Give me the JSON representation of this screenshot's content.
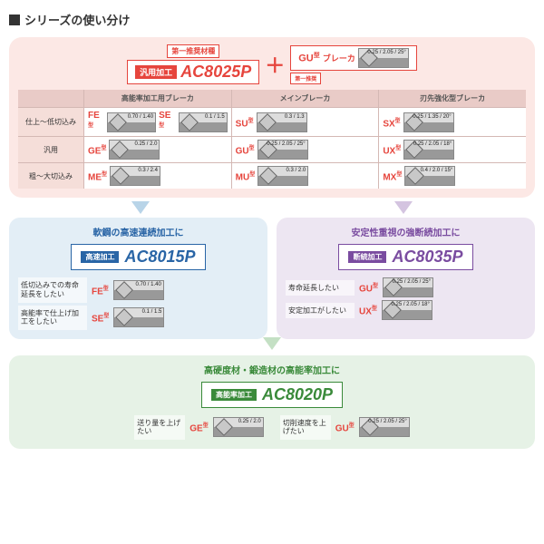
{
  "page_title": "シリーズの使い分け",
  "main": {
    "first_rec_label": "第一推奨材種",
    "general_pill": "汎用加工",
    "general_grade": "AC8025P",
    "plus": "＋",
    "gu_breaker_label": "GU",
    "gu_breaker_sup": "型",
    "gu_breaker_text": "ブレーカ",
    "gu_sub_label": "第一推奨",
    "thumb_dims": "0.25 / 2.05 / 25°",
    "col_headers": [
      "",
      "高能率加工用ブレーカ",
      "メインブレーカ",
      "刃先強化型ブレーカ"
    ],
    "row_headers": [
      "仕上～低切込み",
      "汎用",
      "粗～大切込み"
    ],
    "cells": [
      [
        {
          "t": "FE",
          "d": "0.70 / 1.40"
        },
        {
          "t": "SE",
          "d": "0.1 / 1.5"
        },
        {
          "t": "SU",
          "d": "0.3 / 1.3"
        },
        {
          "t": "SX",
          "d": "0.25 / 1.35 / 20°"
        }
      ],
      [
        {
          "t": "GE",
          "d": "0.25 / 2.0"
        },
        {
          "t": "",
          "d": ""
        },
        {
          "t": "GU",
          "d": "0.25 / 2.05 / 25°"
        },
        {
          "t": "UX",
          "d": "0.25 / 2.05 / 18°"
        }
      ],
      [
        {
          "t": "ME",
          "d": "0.3 / 2.4"
        },
        {
          "t": "",
          "d": ""
        },
        {
          "t": "MU",
          "d": "0.3 / 2.0"
        },
        {
          "t": "MX",
          "d": "0.4 / 2.0 / 15°"
        }
      ]
    ]
  },
  "blue": {
    "title": "軟鋼の高速連続加工に",
    "pill": "高速加工",
    "grade": "AC8015P",
    "rows": [
      {
        "lbl": "低切込みでの寿命延長をしたい",
        "t": "FE",
        "d": "0.70 / 1.40"
      },
      {
        "lbl": "高能率で仕上げ加工をしたい",
        "t": "SE",
        "d": "0.1 / 1.5"
      }
    ]
  },
  "purple": {
    "title": "安定性重視の強断続加工に",
    "pill": "断続加工",
    "grade": "AC8035P",
    "rows": [
      {
        "lbl": "寿命延長したい",
        "t": "GU",
        "d": "0.25 / 2.05 / 25°"
      },
      {
        "lbl": "安定加工がしたい",
        "t": "UX",
        "d": "0.25 / 2.05 / 18°"
      }
    ]
  },
  "green": {
    "title": "高硬度材・鍛造材の高能率加工に",
    "pill": "高能率加工",
    "grade": "AC8020P",
    "rows": [
      {
        "lbl": "送り量を上げたい",
        "t": "GE",
        "d": "0.25 / 2.0"
      },
      {
        "lbl": "切削速度を上げたい",
        "t": "GU",
        "d": "0.25 / 2.05 / 25°"
      }
    ]
  },
  "colors": {
    "red": "#e6453d",
    "blue": "#2965a6",
    "purple": "#7a4ca0",
    "green": "#3a8a3a",
    "main_bg": "#fce8e5",
    "blue_bg": "#e3eef6",
    "purple_bg": "#ede6f2",
    "green_bg": "#e6f2e6"
  }
}
